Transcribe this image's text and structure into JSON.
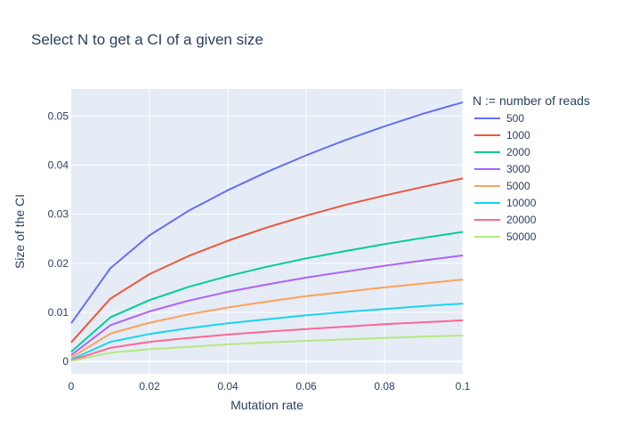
{
  "chart_data": {
    "type": "line",
    "title": "Select N to get a CI of a given size",
    "xlabel": "Mutation rate",
    "ylabel": "Size of the CI",
    "xlim": [
      0,
      0.1
    ],
    "ylim": [
      -0.0025,
      0.0555
    ],
    "x_ticks": [
      0,
      0.02,
      0.04,
      0.06,
      0.08,
      0.1
    ],
    "x_tick_labels": [
      "0",
      "0.02",
      "0.04",
      "0.06",
      "0.08",
      "0.1"
    ],
    "y_ticks": [
      0,
      0.01,
      0.02,
      0.03,
      0.04,
      0.05
    ],
    "y_tick_labels": [
      "0",
      "0.01",
      "0.02",
      "0.03",
      "0.04",
      "0.05"
    ],
    "legend_title": "N := number of reads",
    "legend_position": "right",
    "grid": true,
    "plot_background": "#e5ecf6",
    "x": [
      0,
      0.01,
      0.02,
      0.03,
      0.04,
      0.05,
      0.06,
      0.07,
      0.08,
      0.09,
      0.1
    ],
    "series": [
      {
        "name": "500",
        "color": "#636efa",
        "values": [
          0.0078,
          0.019,
          0.0257,
          0.0307,
          0.0349,
          0.0386,
          0.042,
          0.0451,
          0.0479,
          0.0505,
          0.0528
        ]
      },
      {
        "name": "1000",
        "color": "#ef553b",
        "values": [
          0.0039,
          0.0128,
          0.0178,
          0.0215,
          0.0246,
          0.0273,
          0.0297,
          0.0319,
          0.0338,
          0.0356,
          0.0373
        ]
      },
      {
        "name": "2000",
        "color": "#00cc96",
        "values": [
          0.002,
          0.009,
          0.0125,
          0.0152,
          0.0174,
          0.0193,
          0.021,
          0.0225,
          0.0239,
          0.0252,
          0.0264
        ]
      },
      {
        "name": "3000",
        "color": "#ab63fa",
        "values": [
          0.0013,
          0.0074,
          0.0102,
          0.0124,
          0.0142,
          0.0157,
          0.0171,
          0.0183,
          0.0195,
          0.0206,
          0.0216
        ]
      },
      {
        "name": "5000",
        "color": "#ffa15a",
        "values": [
          0.0008,
          0.0057,
          0.0079,
          0.0096,
          0.011,
          0.0122,
          0.0133,
          0.0142,
          0.0151,
          0.0159,
          0.0167
        ]
      },
      {
        "name": "10000",
        "color": "#19d3f3",
        "values": [
          0.0004,
          0.004,
          0.0056,
          0.0068,
          0.0078,
          0.0086,
          0.0094,
          0.0101,
          0.0107,
          0.0113,
          0.0118
        ]
      },
      {
        "name": "20000",
        "color": "#ff6692",
        "values": [
          0.0002,
          0.0028,
          0.004,
          0.0048,
          0.0055,
          0.0061,
          0.0066,
          0.0071,
          0.0076,
          0.008,
          0.0084
        ]
      },
      {
        "name": "50000",
        "color": "#b6e880",
        "values": [
          0.0001,
          0.0018,
          0.0025,
          0.003,
          0.0035,
          0.0039,
          0.0042,
          0.0045,
          0.0048,
          0.0051,
          0.0053
        ]
      }
    ]
  }
}
